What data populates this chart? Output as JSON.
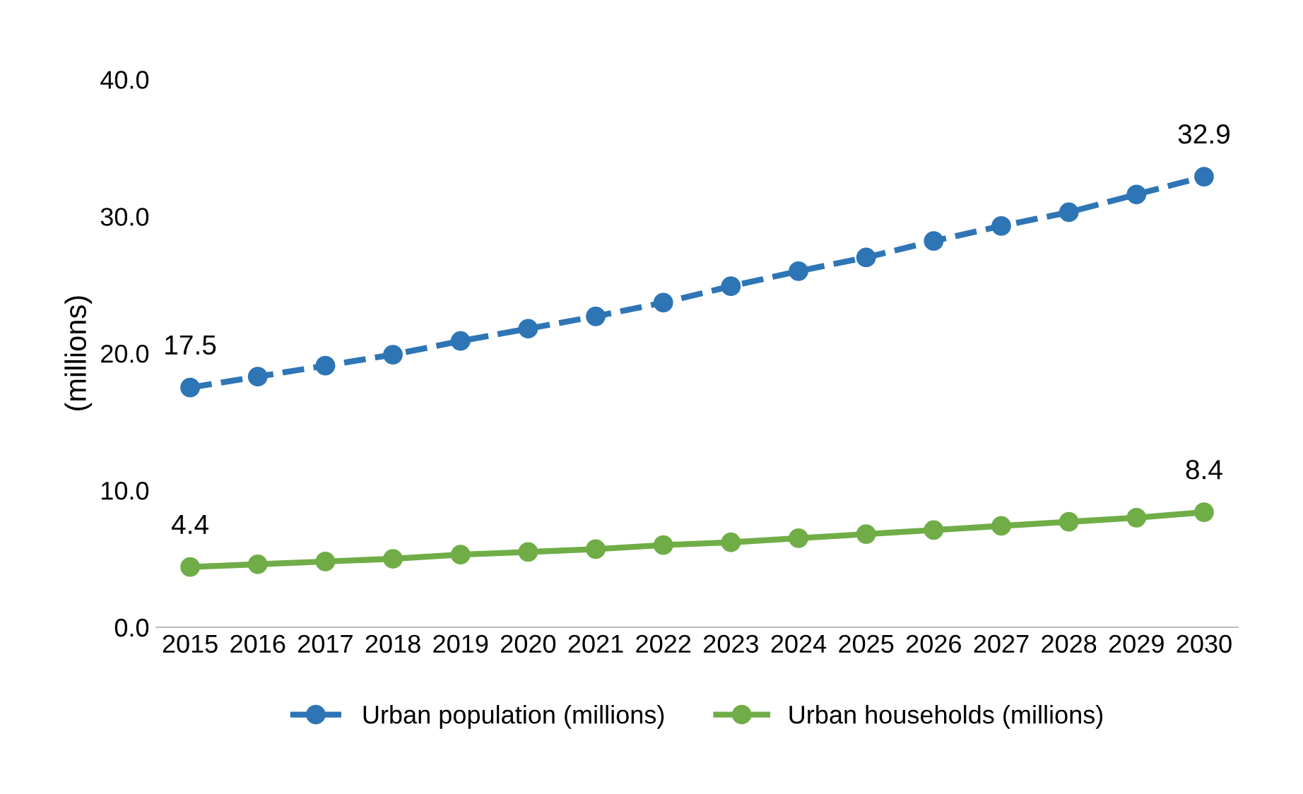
{
  "chart_data": {
    "type": "line",
    "ylabel": "(millions)",
    "categories": [
      "2015",
      "2016",
      "2017",
      "2018",
      "2019",
      "2020",
      "2021",
      "2022",
      "2023",
      "2024",
      "2025",
      "2026",
      "2027",
      "2028",
      "2029",
      "2030"
    ],
    "series": [
      {
        "name": "Urban population (millions)",
        "color": "#2e75b6",
        "line_style": "dashed",
        "marker": "circle",
        "values": [
          17.5,
          18.3,
          19.1,
          19.9,
          20.9,
          21.8,
          22.7,
          23.7,
          24.9,
          26.0,
          27.0,
          28.2,
          29.3,
          30.3,
          31.6,
          32.9
        ],
        "value_labels": [
          "17.5",
          null,
          null,
          null,
          null,
          null,
          null,
          null,
          null,
          null,
          null,
          null,
          null,
          null,
          null,
          "32.9"
        ]
      },
      {
        "name": "Urban households (millions)",
        "color": "#70ad47",
        "line_style": "solid",
        "marker": "circle",
        "values": [
          4.4,
          4.6,
          4.8,
          5.0,
          5.3,
          5.5,
          5.7,
          6.0,
          6.2,
          6.5,
          6.8,
          7.1,
          7.4,
          7.7,
          8.0,
          8.4
        ],
        "value_labels": [
          "4.4",
          null,
          null,
          null,
          null,
          null,
          null,
          null,
          null,
          null,
          null,
          null,
          null,
          null,
          null,
          "8.4"
        ]
      }
    ],
    "ylim": [
      0,
      40
    ],
    "yticks": [
      {
        "value": 0,
        "label": "0.0"
      },
      {
        "value": 10,
        "label": "10.0"
      },
      {
        "value": 20,
        "label": "20.0"
      },
      {
        "value": 30,
        "label": "30.0"
      },
      {
        "value": 40,
        "label": "40.0"
      }
    ],
    "grid": false,
    "legend": "bottom"
  }
}
